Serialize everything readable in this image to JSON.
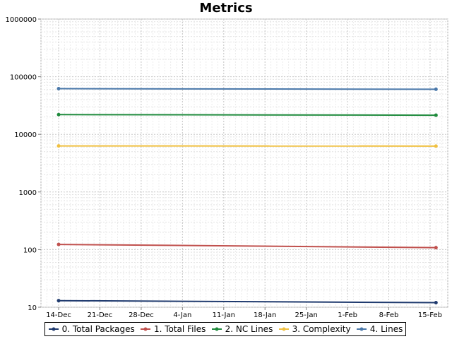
{
  "chart_data": {
    "type": "line",
    "title": "Metrics",
    "xlabel": "",
    "ylabel": "",
    "y_scale": "log",
    "ylim": [
      10,
      1000000
    ],
    "xlim": [
      "2009-12-11",
      "2010-02-18"
    ],
    "y_ticks": [
      "10",
      "100",
      "1000",
      "10000",
      "100000",
      "1000000"
    ],
    "x_ticks": [
      {
        "date": "2009-12-14",
        "label": "14-Dec"
      },
      {
        "date": "2009-12-21",
        "label": "21-Dec"
      },
      {
        "date": "2009-12-28",
        "label": "28-Dec"
      },
      {
        "date": "2010-01-04",
        "label": "4-Jan"
      },
      {
        "date": "2010-01-11",
        "label": "11-Jan"
      },
      {
        "date": "2010-01-18",
        "label": "18-Jan"
      },
      {
        "date": "2010-01-25",
        "label": "25-Jan"
      },
      {
        "date": "2010-02-01",
        "label": "1-Feb"
      },
      {
        "date": "2010-02-08",
        "label": "8-Feb"
      },
      {
        "date": "2010-02-15",
        "label": "15-Feb"
      }
    ],
    "grid": true,
    "legend_position": "bottom",
    "series": [
      {
        "name": "0. Total Packages",
        "color": "#1f3a6e",
        "points": [
          {
            "x": "2009-12-14",
            "y": 13
          },
          {
            "x": "2010-02-16",
            "y": 12
          }
        ]
      },
      {
        "name": "1. Total Files",
        "color": "#c0504d",
        "points": [
          {
            "x": "2009-12-14",
            "y": 123
          },
          {
            "x": "2010-02-16",
            "y": 108
          }
        ]
      },
      {
        "name": "2. NC Lines",
        "color": "#1e8a3c",
        "points": [
          {
            "x": "2009-12-14",
            "y": 22000
          },
          {
            "x": "2010-02-16",
            "y": 21500
          }
        ]
      },
      {
        "name": "3. Complexity",
        "color": "#f0c040",
        "points": [
          {
            "x": "2009-12-14",
            "y": 6300
          },
          {
            "x": "2010-02-16",
            "y": 6250
          }
        ]
      },
      {
        "name": "4. Lines",
        "color": "#4a78aa",
        "points": [
          {
            "x": "2009-12-14",
            "y": 62000
          },
          {
            "x": "2010-02-16",
            "y": 60500
          }
        ]
      }
    ]
  }
}
